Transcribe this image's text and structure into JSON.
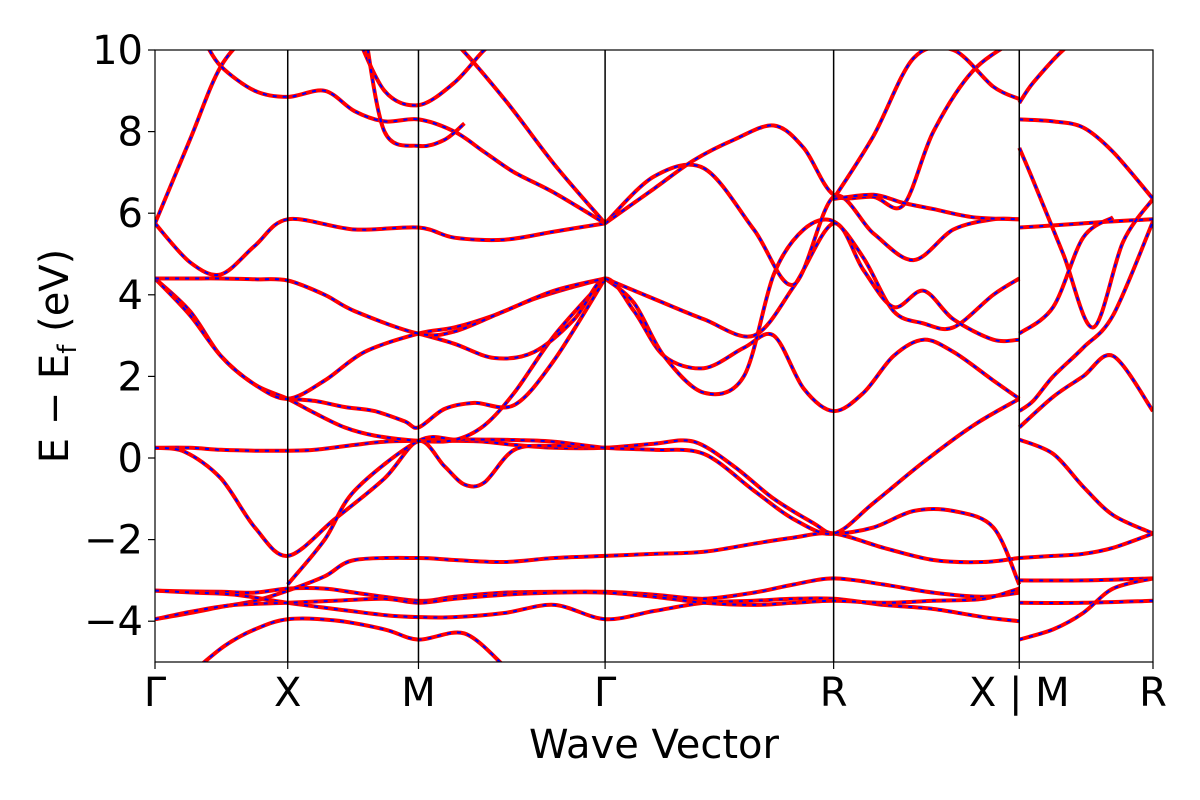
{
  "chart_data": {
    "type": "line",
    "title": "",
    "xlabel": "Wave Vector",
    "ylabel_parts": {
      "main": "E − E",
      "sub": "f",
      "unit": " (eV)"
    },
    "ylim": [
      -5,
      10
    ],
    "yticks": [
      -4,
      -2,
      0,
      2,
      4,
      6,
      8,
      10
    ],
    "ytick_labels": [
      "−4",
      "−2",
      "0",
      "2",
      "4",
      "6",
      "8",
      "10"
    ],
    "xlim": [
      0,
      1
    ],
    "high_symmetry_points": [
      {
        "label": "Γ",
        "x": 0.0
      },
      {
        "label": "X",
        "x": 0.133
      },
      {
        "label": "M",
        "x": 0.264
      },
      {
        "label": "Γ",
        "x": 0.451
      },
      {
        "label": "R",
        "x": 0.68
      },
      {
        "label": "X | M",
        "x": 0.866
      },
      {
        "label": "R",
        "x": 1.0
      }
    ],
    "grid": false,
    "legend": "none",
    "line_style": {
      "solid_color": "#ff0000",
      "dashed_color": "#0000ff"
    },
    "bands": [
      {
        "x": [
          0,
          0.035,
          0.066,
          0.1,
          0.133,
          0.17,
          0.2,
          0.264,
          0.3,
          0.35,
          0.4,
          0.451,
          0.5,
          0.55,
          0.6,
          0.64,
          0.68,
          0.73,
          0.78,
          0.83,
          0.866
        ],
        "y": [
          -3.95,
          -3.8,
          -3.65,
          -3.5,
          -3.25,
          -2.9,
          -2.5,
          -2.45,
          -2.5,
          -2.55,
          -2.45,
          -2.4,
          -2.35,
          -2.3,
          -2.1,
          -1.95,
          -1.85,
          -2.2,
          -2.5,
          -2.55,
          -2.45
        ]
      },
      {
        "x": [
          0,
          0.033,
          0.066,
          0.1,
          0.133,
          0.17,
          0.2,
          0.264,
          0.3,
          0.35,
          0.4,
          0.451,
          0.5,
          0.55,
          0.6,
          0.64,
          0.68,
          0.73,
          0.78,
          0.83,
          0.866
        ],
        "y": [
          -3.25,
          -3.27,
          -3.28,
          -3.3,
          -3.2,
          -3.2,
          -3.3,
          -3.5,
          -3.4,
          -3.3,
          -3.28,
          -3.28,
          -3.35,
          -3.45,
          -3.3,
          -3.1,
          -2.95,
          -3.1,
          -3.3,
          -3.4,
          -3.3
        ]
      },
      {
        "x": [
          0,
          0.04,
          0.08,
          0.133,
          0.18,
          0.23,
          0.264,
          0.3,
          0.35,
          0.4,
          0.451,
          0.5,
          0.55,
          0.6,
          0.64,
          0.68,
          0.73,
          0.78,
          0.83,
          0.866
        ],
        "y": [
          -3.25,
          -3.3,
          -3.35,
          -3.55,
          -3.7,
          -3.85,
          -3.9,
          -3.9,
          -3.8,
          -3.6,
          -3.95,
          -3.75,
          -3.55,
          -3.5,
          -3.45,
          -3.45,
          -3.6,
          -3.7,
          -3.9,
          -4.0
        ]
      },
      {
        "x": [
          0,
          0.04,
          0.08,
          0.133,
          0.18,
          0.23,
          0.264,
          0.3,
          0.35,
          0.4,
          0.451,
          0.5,
          0.55,
          0.6,
          0.64,
          0.68,
          0.73,
          0.78,
          0.83,
          0.866
        ],
        "y": [
          -3.95,
          -3.75,
          -3.6,
          -3.55,
          -3.5,
          -3.45,
          -3.55,
          -3.45,
          -3.35,
          -3.3,
          -3.3,
          -3.4,
          -3.55,
          -3.6,
          -3.55,
          -3.5,
          -3.55,
          -3.5,
          -3.45,
          -3.2
        ]
      },
      {
        "x": [
          0.04,
          0.07,
          0.1,
          0.133,
          0.18,
          0.23,
          0.264,
          0.31,
          0.35
        ],
        "y": [
          -5.2,
          -4.6,
          -4.2,
          -3.95,
          -3.98,
          -4.2,
          -4.45,
          -4.3,
          -5.1
        ]
      },
      {
        "x": [
          0,
          0.035,
          0.066,
          0.1,
          0.133,
          0.16,
          0.2,
          0.23,
          0.264,
          0.3,
          0.33,
          0.36,
          0.4,
          0.451,
          0.5,
          0.54,
          0.58,
          0.62,
          0.66,
          0.68,
          0.72,
          0.76,
          0.8,
          0.84,
          0.866
        ],
        "y": [
          0.25,
          0.25,
          0.2,
          0.18,
          0.18,
          0.2,
          0.32,
          0.4,
          0.42,
          0.42,
          0.4,
          0.32,
          0.25,
          0.25,
          0.35,
          0.4,
          -0.2,
          -1.0,
          -1.6,
          -1.85,
          -1.7,
          -1.3,
          -1.3,
          -1.7,
          -3.1
        ]
      },
      {
        "x": [
          0,
          0.03,
          0.066,
          0.1,
          0.133,
          0.18,
          0.23,
          0.264,
          0.29,
          0.31,
          0.33,
          0.36,
          0.4,
          0.451
        ],
        "y": [
          0.25,
          0.15,
          -0.5,
          -1.7,
          -2.4,
          -1.5,
          -0.5,
          0.42,
          -0.2,
          -0.65,
          -0.6,
          0.2,
          0.3,
          0.25
        ]
      },
      {
        "x": [
          0.133,
          0.17,
          0.2,
          0.264,
          0.3,
          0.33,
          0.36,
          0.4,
          0.451,
          0.5,
          0.55,
          0.6,
          0.64,
          0.68,
          0.72,
          0.77,
          0.82,
          0.866
        ],
        "y": [
          -3.1,
          -2.0,
          -0.8,
          0.42,
          0.45,
          0.45,
          0.44,
          0.4,
          0.25,
          0.2,
          0.1,
          -0.8,
          -1.5,
          -1.85,
          -1.1,
          -0.1,
          0.8,
          1.45
        ]
      },
      {
        "x": [
          0,
          0.035,
          0.066,
          0.1,
          0.133,
          0.16,
          0.19,
          0.22,
          0.264,
          0.3,
          0.33,
          0.36,
          0.4,
          0.451
        ],
        "y": [
          4.4,
          3.6,
          2.5,
          1.8,
          1.45,
          1.1,
          0.75,
          0.55,
          0.42,
          0.44,
          0.8,
          1.6,
          3.0,
          4.4
        ]
      },
      {
        "x": [
          0.133,
          0.16,
          0.19,
          0.22,
          0.25,
          0.264,
          0.29,
          0.32,
          0.36,
          0.4,
          0.451
        ],
        "y": [
          1.45,
          1.4,
          1.25,
          1.15,
          0.9,
          0.75,
          1.2,
          1.35,
          1.3,
          2.4,
          4.4
        ]
      },
      {
        "x": [
          0,
          0.035,
          0.066,
          0.1,
          0.133,
          0.17,
          0.21,
          0.264,
          0.3,
          0.34,
          0.38,
          0.42,
          0.451
        ],
        "y": [
          4.4,
          3.5,
          2.5,
          1.8,
          1.45,
          1.9,
          2.6,
          3.05,
          3.2,
          3.5,
          3.9,
          4.2,
          4.4
        ]
      },
      {
        "x": [
          0.264,
          0.3,
          0.34,
          0.38,
          0.42,
          0.451,
          0.48,
          0.51,
          0.55,
          0.59,
          0.62,
          0.65,
          0.68,
          0.71,
          0.74,
          0.77,
          0.8,
          0.84,
          0.866
        ],
        "y": [
          3.05,
          2.8,
          2.45,
          2.6,
          3.4,
          4.4,
          3.6,
          2.5,
          2.2,
          2.7,
          3.0,
          1.7,
          1.15,
          1.6,
          2.5,
          2.9,
          2.6,
          1.9,
          1.45
        ]
      },
      {
        "x": [
          0.451,
          0.48,
          0.51,
          0.55,
          0.59,
          0.62,
          0.65,
          0.68,
          0.71,
          0.74,
          0.77,
          0.8,
          0.84,
          0.866
        ],
        "y": [
          4.4,
          3.8,
          2.5,
          1.6,
          2.0,
          4.5,
          5.6,
          5.8,
          4.9,
          3.6,
          3.3,
          3.2,
          4.0,
          4.4
        ]
      },
      {
        "x": [
          0.451,
          0.5,
          0.55,
          0.6,
          0.64,
          0.68,
          0.71,
          0.74,
          0.77,
          0.8,
          0.84,
          0.866
        ],
        "y": [
          4.4,
          3.9,
          3.4,
          3.0,
          4.2,
          5.75,
          4.6,
          3.7,
          4.1,
          3.4,
          2.9,
          2.9
        ]
      },
      {
        "x": [
          0,
          0.035,
          0.066,
          0.1,
          0.133,
          0.17,
          0.2,
          0.264,
          0.3,
          0.35,
          0.4,
          0.451
        ],
        "y": [
          4.4,
          4.4,
          4.4,
          4.38,
          4.35,
          4.0,
          3.6,
          3.05,
          3.1,
          3.6,
          4.1,
          4.4
        ]
      },
      {
        "x": [
          0,
          0.035,
          0.066,
          0.1,
          0.133,
          0.2,
          0.264,
          0.3,
          0.35,
          0.4,
          0.451
        ],
        "y": [
          5.75,
          4.8,
          4.5,
          5.2,
          5.85,
          5.6,
          5.65,
          5.4,
          5.35,
          5.55,
          5.75
        ]
      },
      {
        "x": [
          0.451,
          0.5,
          0.55,
          0.6,
          0.64,
          0.68,
          0.72,
          0.76,
          0.8,
          0.84,
          0.866
        ],
        "y": [
          5.75,
          6.9,
          7.1,
          5.6,
          4.25,
          6.4,
          5.5,
          4.85,
          5.6,
          5.85,
          5.85
        ]
      },
      {
        "x": [
          0.451,
          0.5,
          0.54,
          0.58,
          0.62,
          0.65,
          0.68,
          0.72,
          0.75,
          0.78,
          0.82,
          0.866
        ],
        "y": [
          5.75,
          6.6,
          7.3,
          7.8,
          8.15,
          7.6,
          6.45,
          6.4,
          6.2,
          8.0,
          9.5,
          10.3
        ]
      },
      {
        "x": [
          0.68,
          0.72,
          0.76,
          0.8,
          0.84,
          0.866
        ],
        "y": [
          6.35,
          7.9,
          9.8,
          10.0,
          9.1,
          8.8
        ]
      },
      {
        "x": [
          0.68,
          0.72,
          0.75,
          0.78,
          0.82,
          0.866
        ],
        "y": [
          6.35,
          6.45,
          6.25,
          6.1,
          5.9,
          5.85
        ]
      },
      {
        "x": [
          0,
          0.035,
          0.066,
          0.1,
          0.133,
          0.17,
          0.2,
          0.264,
          0.3,
          0.35,
          0.4,
          0.451
        ],
        "y": [
          5.75,
          7.8,
          9.6,
          10.5,
          11,
          11,
          11,
          10.8,
          10.2,
          8.8,
          7.2,
          5.75
        ]
      },
      {
        "x": [
          0.05,
          0.066,
          0.1,
          0.133,
          0.17,
          0.2,
          0.23,
          0.264,
          0.3,
          0.33,
          0.36,
          0.4,
          0.451
        ],
        "y": [
          10.2,
          9.6,
          9.0,
          8.85,
          9.0,
          8.5,
          8.25,
          8.3,
          8.0,
          7.5,
          7.0,
          6.5,
          5.75
        ]
      },
      {
        "x": [
          0.2,
          0.23,
          0.264,
          0.3,
          0.33,
          0.35
        ],
        "y": [
          10.5,
          9.0,
          8.65,
          9.2,
          10.0,
          10.3
        ]
      },
      {
        "x": [
          0.21,
          0.23,
          0.264,
          0.29,
          0.31
        ],
        "y": [
          10.5,
          8.0,
          7.65,
          7.8,
          8.2
        ]
      },
      {
        "x": [
          0.866,
          0.9,
          0.93,
          0.96,
          1.0
        ],
        "y": [
          0.75,
          1.5,
          2.0,
          2.5,
          1.15
        ]
      },
      {
        "x": [
          0.866,
          0.88,
          0.9,
          0.93,
          0.96,
          1.0
        ],
        "y": [
          1.15,
          1.4,
          2.0,
          2.7,
          3.5,
          5.8
        ]
      },
      {
        "x": [
          0.866,
          0.9,
          0.93,
          0.96,
          1.0
        ],
        "y": [
          0.45,
          0.1,
          -0.7,
          -1.4,
          -1.85
        ]
      },
      {
        "x": [
          0.866,
          0.9,
          0.93,
          0.96,
          1.0
        ],
        "y": [
          -2.45,
          -2.4,
          -2.35,
          -2.2,
          -1.85
        ]
      },
      {
        "x": [
          0.866,
          0.93,
          1.0
        ],
        "y": [
          -3.0,
          -3.0,
          -2.95
        ]
      },
      {
        "x": [
          0.866,
          0.93,
          1.0
        ],
        "y": [
          -3.55,
          -3.55,
          -3.5
        ]
      },
      {
        "x": [
          0.866,
          0.9,
          0.93,
          0.96,
          1.0
        ],
        "y": [
          -4.45,
          -4.2,
          -3.8,
          -3.2,
          -2.95
        ]
      },
      {
        "x": [
          0.866,
          0.9,
          0.93,
          0.96,
          1.0
        ],
        "y": [
          5.65,
          5.7,
          5.75,
          5.8,
          5.85
        ]
      },
      {
        "x": [
          0.866,
          0.88,
          0.91,
          0.94,
          0.97,
          1.0
        ],
        "y": [
          7.6,
          6.8,
          5.0,
          3.2,
          5.3,
          6.35
        ]
      },
      {
        "x": [
          0.866,
          0.9,
          0.93,
          0.96,
          1.0
        ],
        "y": [
          8.3,
          8.25,
          8.1,
          7.5,
          6.35
        ]
      },
      {
        "x": [
          0.866,
          0.9,
          0.93,
          0.96
        ],
        "y": [
          3.05,
          3.7,
          5.4,
          5.9
        ]
      },
      {
        "x": [
          0.866,
          0.88,
          0.91,
          0.94
        ],
        "y": [
          8.7,
          9.2,
          10.0,
          10.5
        ]
      }
    ]
  }
}
